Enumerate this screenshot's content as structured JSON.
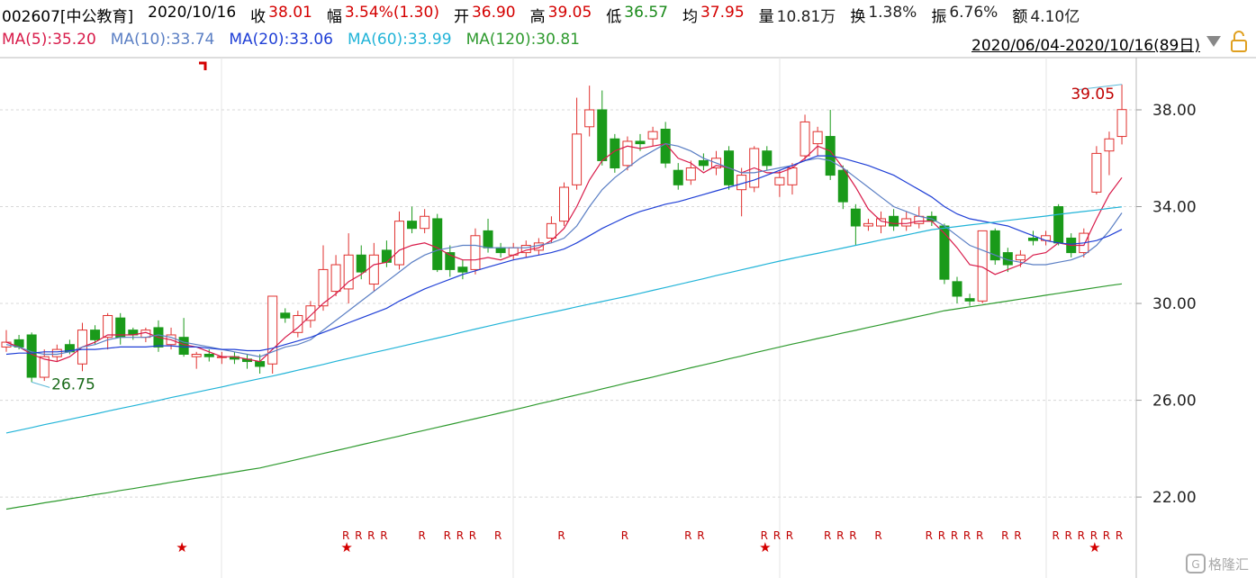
{
  "header": {
    "code": "002607[中公教育]",
    "date": "2020/10/16",
    "fields": [
      {
        "label": "收",
        "value": "38.01",
        "color": "#d40000"
      },
      {
        "label": "幅",
        "value": "3.54%(1.30)",
        "color": "#d40000"
      },
      {
        "label": "开",
        "value": "36.90",
        "color": "#d40000"
      },
      {
        "label": "高",
        "value": "39.05",
        "color": "#d40000"
      },
      {
        "label": "低",
        "value": "36.57",
        "color": "#1a8a1a"
      },
      {
        "label": "均",
        "value": "37.95",
        "color": "#d40000"
      },
      {
        "label": "量",
        "value": "10.81万",
        "color": "#222222"
      },
      {
        "label": "换",
        "value": "1.38%",
        "color": "#222222"
      },
      {
        "label": "振",
        "value": "6.76%",
        "color": "#222222"
      },
      {
        "label": "额",
        "value": "4.10亿",
        "color": "#222222"
      }
    ],
    "range": "2020/06/04-2020/10/16(89日)",
    "watermark": "格隆汇"
  },
  "chart_data": {
    "type": "candlestick",
    "up_color": "#e0312f",
    "down_color": "#1a9a1a",
    "ylim": [
      18.73,
      40.12
    ],
    "yticks": [
      {
        "value": 22,
        "label": "22.00"
      },
      {
        "value": 26,
        "label": "26.00"
      },
      {
        "value": 30,
        "label": "30.00"
      },
      {
        "value": 34,
        "label": "34.00"
      },
      {
        "value": 38,
        "label": "38.00"
      }
    ],
    "grid": true,
    "high_label": "39.05",
    "low_label": "26.75",
    "open": [
      28.2,
      28.5,
      28.7,
      26.95,
      27.8,
      28.3,
      27.5,
      28.9,
      28.6,
      29.4,
      28.9,
      28.6,
      29.0,
      28.3,
      28.6,
      27.8,
      27.9,
      27.8,
      27.8,
      27.7,
      27.6,
      27.5,
      29.6,
      28.8,
      29.3,
      29.9,
      30.5,
      30.6,
      32.0,
      30.8,
      32.2,
      31.6,
      33.4,
      33.1,
      33.5,
      32.1,
      31.5,
      31.4,
      33.0,
      32.3,
      32.0,
      32.1,
      32.2,
      32.7,
      33.4,
      34.9,
      37.3,
      38.0,
      36.8,
      35.7,
      36.7,
      36.8,
      37.2,
      35.5,
      35.1,
      35.9,
      35.6,
      36.3,
      34.7,
      34.8,
      36.3,
      34.9,
      34.9,
      36.1,
      36.6,
      36.9,
      35.5,
      33.9,
      33.2,
      33.2,
      33.6,
      33.2,
      33.3,
      33.6,
      33.2,
      30.9,
      30.2,
      30.1,
      33.0,
      32.1,
      31.8,
      32.7,
      32.6,
      34.0,
      32.7,
      32.1,
      34.6,
      36.3,
      36.9
    ],
    "high": [
      28.9,
      28.7,
      28.8,
      28.1,
      28.3,
      28.5,
      29.2,
      29.1,
      29.6,
      29.6,
      29.0,
      29.0,
      29.3,
      29.0,
      29.4,
      28.0,
      28.1,
      28.0,
      28.0,
      27.9,
      27.9,
      30.3,
      29.8,
      29.7,
      30.1,
      32.4,
      32.0,
      32.9,
      32.4,
      32.5,
      32.6,
      33.8,
      34.0,
      33.9,
      33.7,
      32.4,
      31.8,
      33.1,
      33.5,
      32.5,
      32.5,
      32.6,
      32.7,
      33.6,
      35.0,
      38.5,
      39.0,
      38.8,
      37.0,
      36.9,
      37.0,
      37.3,
      37.5,
      35.8,
      35.9,
      36.2,
      36.3,
      36.5,
      35.6,
      36.5,
      36.5,
      35.5,
      35.8,
      37.8,
      37.3,
      38.0,
      35.7,
      34.1,
      33.5,
      33.8,
      33.9,
      33.8,
      34.0,
      33.8,
      33.3,
      31.1,
      30.4,
      33.0,
      33.1,
      32.3,
      32.2,
      33.0,
      33.0,
      34.1,
      32.9,
      33.1,
      36.5,
      37.1,
      39.05
    ],
    "low": [
      28.0,
      28.1,
      26.75,
      26.8,
      27.6,
      27.9,
      27.2,
      28.3,
      28.1,
      28.3,
      28.5,
      28.4,
      28.0,
      28.1,
      27.8,
      27.3,
      27.6,
      27.5,
      27.5,
      27.3,
      27.1,
      27.1,
      29.2,
      28.6,
      29.0,
      29.7,
      30.3,
      30.0,
      31.0,
      30.5,
      31.5,
      31.4,
      32.9,
      32.9,
      31.3,
      31.1,
      31.0,
      31.2,
      32.1,
      31.9,
      31.8,
      31.9,
      32.0,
      32.5,
      33.2,
      34.7,
      36.9,
      35.7,
      35.4,
      35.5,
      36.3,
      36.5,
      35.6,
      34.7,
      34.9,
      35.5,
      35.3,
      34.7,
      33.6,
      34.6,
      35.5,
      34.4,
      34.5,
      35.9,
      36.1,
      35.1,
      33.9,
      32.4,
      33.0,
      32.9,
      33.0,
      33.0,
      33.1,
      33.2,
      30.8,
      30.0,
      29.9,
      30.0,
      31.6,
      31.3,
      31.5,
      32.4,
      32.4,
      32.4,
      31.9,
      31.9,
      34.5,
      35.3,
      36.57
    ],
    "close": [
      28.4,
      28.2,
      26.95,
      27.8,
      28.1,
      28.0,
      28.9,
      28.5,
      29.5,
      28.6,
      28.7,
      28.9,
      28.2,
      28.7,
      27.9,
      27.9,
      27.8,
      27.8,
      27.7,
      27.6,
      27.4,
      30.3,
      29.4,
      29.5,
      29.9,
      31.4,
      31.6,
      32.0,
      31.3,
      32.0,
      31.7,
      33.4,
      33.1,
      33.6,
      31.4,
      31.4,
      31.3,
      32.8,
      32.3,
      32.1,
      32.3,
      32.4,
      32.5,
      33.3,
      34.8,
      37.0,
      38.0,
      35.9,
      35.6,
      36.7,
      36.6,
      37.1,
      35.8,
      34.9,
      35.6,
      35.7,
      36.0,
      34.9,
      35.3,
      36.4,
      35.7,
      35.2,
      35.6,
      37.5,
      37.1,
      35.3,
      34.2,
      33.2,
      33.3,
      33.5,
      33.2,
      33.5,
      33.6,
      33.4,
      31.0,
      30.3,
      30.1,
      33.0,
      31.8,
      31.6,
      32.0,
      32.6,
      32.8,
      32.5,
      32.1,
      32.9,
      36.2,
      36.8,
      38.01
    ],
    "ma_series": [
      {
        "name": "MA(5):35.20",
        "color": "#d81b4a",
        "values": [
          28.4,
          28.2,
          27.9,
          27.7,
          27.6,
          27.8,
          28.2,
          28.4,
          28.7,
          28.7,
          28.7,
          28.8,
          28.6,
          28.5,
          28.3,
          28.2,
          28.0,
          27.8,
          27.8,
          27.7,
          27.6,
          28.1,
          28.6,
          29.0,
          29.5,
          30.0,
          30.4,
          30.9,
          31.2,
          31.6,
          31.7,
          32.2,
          32.4,
          32.5,
          32.3,
          32.0,
          31.8,
          31.8,
          31.9,
          31.8,
          32.0,
          32.2,
          32.3,
          32.6,
          33.1,
          34.0,
          35.1,
          35.9,
          36.3,
          36.5,
          36.4,
          36.5,
          36.6,
          36.0,
          35.8,
          35.4,
          35.7,
          35.6,
          35.4,
          35.6,
          35.4,
          35.4,
          35.6,
          36.0,
          36.5,
          36.3,
          35.6,
          34.8,
          33.9,
          33.4,
          33.3,
          33.3,
          33.4,
          33.4,
          32.9,
          32.3,
          31.6,
          31.5,
          31.2,
          31.4,
          31.6,
          32.0,
          32.1,
          32.5,
          32.4,
          32.4,
          33.5,
          34.5,
          35.2
        ]
      },
      {
        "name": "MA(10):33.74",
        "color": "#5b7fc4",
        "values": [
          28.3,
          28.2,
          28.0,
          27.9,
          27.9,
          28.0,
          28.2,
          28.3,
          28.5,
          28.6,
          28.6,
          28.6,
          28.7,
          28.6,
          28.4,
          28.3,
          28.2,
          28.1,
          28.0,
          27.9,
          27.8,
          28.0,
          28.2,
          28.3,
          28.5,
          28.9,
          29.3,
          29.7,
          30.1,
          30.5,
          30.9,
          31.3,
          31.7,
          32.0,
          32.2,
          32.3,
          32.4,
          32.4,
          32.3,
          32.3,
          32.3,
          32.3,
          32.4,
          32.5,
          32.7,
          33.2,
          34.0,
          34.7,
          35.2,
          35.6,
          36.0,
          36.3,
          36.6,
          36.5,
          36.3,
          36.0,
          35.8,
          35.6,
          35.4,
          35.4,
          35.5,
          35.6,
          35.7,
          35.9,
          36.0,
          35.9,
          35.6,
          35.2,
          34.8,
          34.4,
          34.0,
          33.8,
          33.6,
          33.5,
          33.2,
          32.8,
          32.4,
          32.2,
          32.0,
          31.8,
          31.7,
          31.6,
          31.6,
          31.7,
          31.8,
          32.0,
          32.4,
          33.0,
          33.74
        ]
      },
      {
        "name": "MA(20):33.06",
        "color": "#1f3fd6",
        "values": [
          27.9,
          27.95,
          27.95,
          28.0,
          28.0,
          28.05,
          28.1,
          28.1,
          28.15,
          28.2,
          28.2,
          28.2,
          28.25,
          28.25,
          28.2,
          28.2,
          28.15,
          28.1,
          28.1,
          28.05,
          28.05,
          28.15,
          28.3,
          28.45,
          28.6,
          28.8,
          29.0,
          29.2,
          29.4,
          29.6,
          29.8,
          30.1,
          30.35,
          30.6,
          30.8,
          31.0,
          31.2,
          31.35,
          31.5,
          31.65,
          31.8,
          31.9,
          32.0,
          32.1,
          32.25,
          32.5,
          32.8,
          33.1,
          33.35,
          33.6,
          33.8,
          33.95,
          34.1,
          34.2,
          34.35,
          34.5,
          34.65,
          34.8,
          34.95,
          35.1,
          35.3,
          35.5,
          35.7,
          35.9,
          36.1,
          36.1,
          36.0,
          35.85,
          35.7,
          35.5,
          35.3,
          35.0,
          34.7,
          34.4,
          34.0,
          33.7,
          33.5,
          33.4,
          33.3,
          33.2,
          33.0,
          32.8,
          32.6,
          32.5,
          32.45,
          32.5,
          32.6,
          32.8,
          33.06
        ]
      },
      {
        "name": "MA(60):33.99",
        "color": "#22b4d8",
        "values": [
          24.65,
          24.76,
          24.87,
          24.99,
          25.1,
          25.21,
          25.32,
          25.43,
          25.55,
          25.66,
          25.77,
          25.88,
          25.99,
          26.11,
          26.22,
          26.33,
          26.44,
          26.55,
          26.67,
          26.78,
          26.89,
          27.0,
          27.12,
          27.24,
          27.36,
          27.48,
          27.61,
          27.73,
          27.85,
          27.97,
          28.09,
          28.21,
          28.33,
          28.45,
          28.57,
          28.69,
          28.82,
          28.94,
          29.06,
          29.18,
          29.3,
          29.41,
          29.52,
          29.63,
          29.74,
          29.86,
          29.97,
          30.08,
          30.19,
          30.3,
          30.42,
          30.54,
          30.66,
          30.78,
          30.9,
          31.02,
          31.15,
          31.27,
          31.39,
          31.51,
          31.63,
          31.75,
          31.86,
          31.97,
          32.07,
          32.18,
          32.29,
          32.4,
          32.51,
          32.62,
          32.72,
          32.83,
          32.94,
          33.05,
          33.11,
          33.18,
          33.24,
          33.3,
          33.36,
          33.43,
          33.49,
          33.55,
          33.61,
          33.68,
          33.74,
          33.8,
          33.86,
          33.93,
          33.99
        ]
      },
      {
        "name": "MA(120):30.81",
        "color": "#2e9a2e",
        "values": [
          21.5,
          21.59,
          21.67,
          21.76,
          21.84,
          21.93,
          22.01,
          22.1,
          22.18,
          22.27,
          22.35,
          22.44,
          22.52,
          22.61,
          22.69,
          22.78,
          22.86,
          22.95,
          23.03,
          23.12,
          23.2,
          23.32,
          23.44,
          23.56,
          23.68,
          23.8,
          23.92,
          24.04,
          24.16,
          24.28,
          24.4,
          24.52,
          24.64,
          24.76,
          24.88,
          25.0,
          25.12,
          25.24,
          25.36,
          25.48,
          25.6,
          25.72,
          25.85,
          25.97,
          26.1,
          26.22,
          26.34,
          26.47,
          26.59,
          26.72,
          26.84,
          26.96,
          27.09,
          27.21,
          27.34,
          27.46,
          27.58,
          27.71,
          27.83,
          27.96,
          28.08,
          28.2,
          28.32,
          28.43,
          28.55,
          28.66,
          28.78,
          28.89,
          29.01,
          29.12,
          29.24,
          29.35,
          29.47,
          29.58,
          29.7,
          29.78,
          29.86,
          29.94,
          30.02,
          30.1,
          30.18,
          30.26,
          30.34,
          30.42,
          30.5,
          30.58,
          30.66,
          30.74,
          30.81
        ]
      }
    ],
    "r_marks": [
      null,
      null,
      null,
      null,
      null,
      null,
      null,
      null,
      null,
      null,
      null,
      null,
      null,
      null,
      null,
      null,
      null,
      null,
      null,
      null,
      null,
      null,
      null,
      null,
      null,
      null,
      null,
      "R",
      "R",
      "R",
      "R",
      null,
      null,
      "R",
      null,
      "R",
      "R",
      "R",
      null,
      "R",
      null,
      null,
      null,
      null,
      "R",
      null,
      null,
      null,
      null,
      "R",
      null,
      null,
      null,
      null,
      "R",
      "R",
      null,
      null,
      null,
      null,
      "R",
      "R",
      "R",
      null,
      null,
      "R",
      "R",
      "R",
      null,
      "R",
      null,
      null,
      null,
      "R",
      "R",
      "R",
      "R",
      "R",
      null,
      "R",
      "R",
      null,
      null,
      "R",
      "R",
      "R",
      "R",
      "R",
      "R"
    ],
    "star_marks": [
      null,
      null,
      null,
      null,
      null,
      null,
      null,
      null,
      null,
      null,
      null,
      null,
      null,
      null,
      "★",
      null,
      null,
      null,
      null,
      null,
      null,
      null,
      null,
      null,
      null,
      null,
      null,
      "★",
      null,
      null,
      null,
      null,
      null,
      null,
      null,
      null,
      null,
      null,
      null,
      null,
      null,
      null,
      null,
      null,
      null,
      null,
      null,
      null,
      null,
      null,
      null,
      null,
      null,
      null,
      null,
      null,
      null,
      null,
      null,
      null,
      "★",
      null,
      null,
      null,
      null,
      null,
      null,
      null,
      null,
      null,
      null,
      null,
      null,
      null,
      null,
      null,
      null,
      null,
      null,
      null,
      null,
      null,
      null,
      null,
      null,
      null,
      "★",
      null,
      null
    ]
  }
}
